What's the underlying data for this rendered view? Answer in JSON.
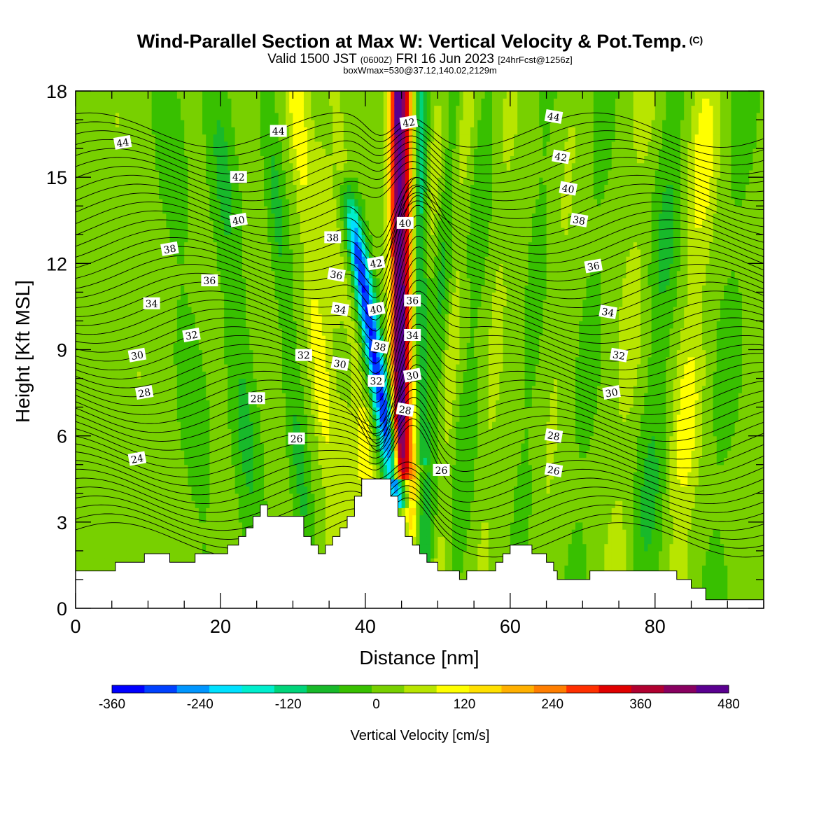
{
  "header": {
    "title_main": "Wind-Parallel Section at Max W: Vertical Velocity & Pot.Temp.",
    "title_mark": "(C)",
    "valid_prefix": "Valid 1500 JST",
    "valid_utc": "(0600Z)",
    "valid_date": "FRI 16 Jun 2023",
    "forecast": "[24hrFcst@1256z]",
    "box_info": "boxWmax=530@37.12,140.02,2129m"
  },
  "colors": {
    "levels": [
      "#0000ff",
      "#0041ff",
      "#0096ff",
      "#00e1ff",
      "#00eecd",
      "#00d47a",
      "#18b92a",
      "#38c000",
      "#78d000",
      "#b8e500",
      "#ffff00",
      "#ffe000",
      "#ffb000",
      "#ff7e00",
      "#ff3000",
      "#e00000",
      "#b00030",
      "#880060",
      "#5a0090"
    ],
    "terrain": "#ffffff"
  },
  "chart_data": {
    "type": "heatmap",
    "xlabel": "Distance [nm]",
    "ylabel": "Height [Kft MSL]",
    "xlim": [
      0,
      95
    ],
    "ylim": [
      0,
      18
    ],
    "xticks": [
      0,
      20,
      40,
      60,
      80
    ],
    "yticks": [
      0,
      3,
      6,
      9,
      12,
      15,
      18
    ],
    "colorbar": {
      "title": "Vertical Velocity [cm/s]",
      "levels": [
        -360,
        -240,
        -120,
        0,
        120,
        240,
        360,
        480
      ],
      "min": -360,
      "max": 480
    },
    "terrain_profile": [
      [
        0,
        1.3
      ],
      [
        5.5,
        1.3
      ],
      [
        5.5,
        1.6
      ],
      [
        9.5,
        1.6
      ],
      [
        9.5,
        1.9
      ],
      [
        13,
        1.9
      ],
      [
        13,
        1.6
      ],
      [
        16.5,
        1.6
      ],
      [
        16.5,
        1.9
      ],
      [
        21,
        1.9
      ],
      [
        21,
        2.2
      ],
      [
        22.5,
        2.2
      ],
      [
        22.5,
        2.5
      ],
      [
        23.5,
        2.5
      ],
      [
        23.5,
        2.8
      ],
      [
        24.5,
        2.8
      ],
      [
        24.5,
        3.2
      ],
      [
        25.5,
        3.2
      ],
      [
        25.5,
        3.6
      ],
      [
        26.5,
        3.6
      ],
      [
        26.5,
        3.2
      ],
      [
        31.5,
        3.2
      ],
      [
        31.5,
        2.5
      ],
      [
        32.5,
        2.5
      ],
      [
        32.5,
        2.2
      ],
      [
        33.5,
        2.2
      ],
      [
        33.5,
        1.9
      ],
      [
        34.5,
        1.9
      ],
      [
        34.5,
        2.2
      ],
      [
        35.5,
        2.2
      ],
      [
        35.5,
        2.5
      ],
      [
        36.5,
        2.5
      ],
      [
        36.5,
        2.8
      ],
      [
        37.5,
        2.8
      ],
      [
        37.5,
        3.2
      ],
      [
        38.5,
        3.2
      ],
      [
        38.5,
        3.9
      ],
      [
        39.5,
        3.9
      ],
      [
        39.5,
        4.5
      ],
      [
        43.5,
        4.5
      ],
      [
        43.5,
        3.9
      ],
      [
        44.5,
        3.9
      ],
      [
        44.5,
        3.2
      ],
      [
        45.5,
        3.2
      ],
      [
        45.5,
        2.5
      ],
      [
        46.5,
        2.5
      ],
      [
        46.5,
        2.2
      ],
      [
        47.5,
        2.2
      ],
      [
        47.5,
        1.9
      ],
      [
        48.5,
        1.9
      ],
      [
        48.5,
        1.6
      ],
      [
        50,
        1.6
      ],
      [
        50,
        1.3
      ],
      [
        53,
        1.3
      ],
      [
        53,
        1.0
      ],
      [
        54,
        1.0
      ],
      [
        54,
        1.3
      ],
      [
        58,
        1.3
      ],
      [
        58,
        1.6
      ],
      [
        59,
        1.6
      ],
      [
        59,
        1.9
      ],
      [
        60,
        1.9
      ],
      [
        60,
        2.2
      ],
      [
        63,
        2.2
      ],
      [
        63,
        1.9
      ],
      [
        65,
        1.9
      ],
      [
        65,
        1.6
      ],
      [
        66,
        1.6
      ],
      [
        66,
        1.3
      ],
      [
        66.5,
        1.3
      ],
      [
        66.5,
        1.0
      ],
      [
        71,
        1.0
      ],
      [
        71,
        1.3
      ],
      [
        83,
        1.3
      ],
      [
        83,
        1.0
      ],
      [
        85,
        1.0
      ],
      [
        85,
        0.7
      ],
      [
        87,
        0.7
      ],
      [
        87,
        0.3
      ],
      [
        95,
        0.3
      ]
    ],
    "theta_labels": [
      {
        "text": "44",
        "x": 6.5,
        "y": 16.2
      },
      {
        "text": "44",
        "x": 28,
        "y": 16.6
      },
      {
        "text": "44",
        "x": 66,
        "y": 17.1
      },
      {
        "text": "42",
        "x": 46,
        "y": 16.9
      },
      {
        "text": "42",
        "x": 22.5,
        "y": 15.0
      },
      {
        "text": "42",
        "x": 67,
        "y": 15.7
      },
      {
        "text": "40",
        "x": 22.5,
        "y": 13.5
      },
      {
        "text": "40",
        "x": 45.5,
        "y": 13.4
      },
      {
        "text": "40",
        "x": 68,
        "y": 14.6
      },
      {
        "text": "38",
        "x": 13,
        "y": 12.5
      },
      {
        "text": "38",
        "x": 35.5,
        "y": 12.9
      },
      {
        "text": "38",
        "x": 69.5,
        "y": 13.5
      },
      {
        "text": "42",
        "x": 41.5,
        "y": 12.0
      },
      {
        "text": "36",
        "x": 18.5,
        "y": 11.4
      },
      {
        "text": "36",
        "x": 36,
        "y": 11.6
      },
      {
        "text": "36",
        "x": 71.5,
        "y": 11.9
      },
      {
        "text": "34",
        "x": 10.5,
        "y": 10.6
      },
      {
        "text": "34",
        "x": 36.5,
        "y": 10.4
      },
      {
        "text": "40",
        "x": 41.5,
        "y": 10.4
      },
      {
        "text": "36",
        "x": 46.5,
        "y": 10.7
      },
      {
        "text": "34",
        "x": 73.5,
        "y": 10.3
      },
      {
        "text": "32",
        "x": 16,
        "y": 9.5
      },
      {
        "text": "34",
        "x": 46.5,
        "y": 9.5
      },
      {
        "text": "38",
        "x": 42,
        "y": 9.1
      },
      {
        "text": "30",
        "x": 8.5,
        "y": 8.8
      },
      {
        "text": "32",
        "x": 31.5,
        "y": 8.8
      },
      {
        "text": "30",
        "x": 36.5,
        "y": 8.5
      },
      {
        "text": "30",
        "x": 46.5,
        "y": 8.1
      },
      {
        "text": "32",
        "x": 41.5,
        "y": 7.9
      },
      {
        "text": "32",
        "x": 75,
        "y": 8.8
      },
      {
        "text": "28",
        "x": 9.5,
        "y": 7.5
      },
      {
        "text": "28",
        "x": 25,
        "y": 7.3
      },
      {
        "text": "28",
        "x": 45.5,
        "y": 6.9
      },
      {
        "text": "30",
        "x": 74,
        "y": 7.5
      },
      {
        "text": "26",
        "x": 30.5,
        "y": 5.9
      },
      {
        "text": "28",
        "x": 66,
        "y": 6.0
      },
      {
        "text": "24",
        "x": 8.5,
        "y": 5.2
      },
      {
        "text": "26",
        "x": 50.5,
        "y": 4.8
      },
      {
        "text": "26",
        "x": 66,
        "y": 4.8
      }
    ]
  }
}
